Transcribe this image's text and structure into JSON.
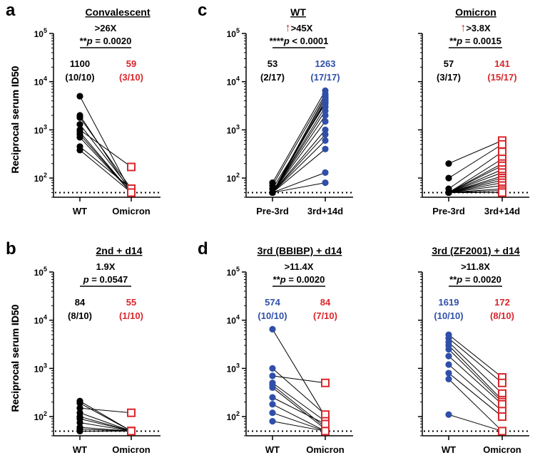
{
  "figure": {
    "background": "#ffffff"
  },
  "colors": {
    "black": "#000000",
    "blue": "#2f4fa8",
    "red": "#d9262b"
  },
  "chart_data": [
    {
      "id": "a",
      "type": "scatter-paired",
      "letter": "a",
      "title": "Convalescent",
      "ylabel": "Reciprocal serum ID50",
      "yscale": "log",
      "ylim": [
        40,
        100000
      ],
      "y_ticks": [
        "10",
        "10",
        "10",
        "10"
      ],
      "y_tick_exps": [
        "2",
        "3",
        "4",
        "5"
      ],
      "categories": [
        "WT",
        "Omicron"
      ],
      "lod": 50,
      "fold": ">26X",
      "p_prefix": "**",
      "p_text": " = 0.0020",
      "geo": [
        [
          "1100",
          "(10/10)"
        ],
        [
          "59",
          "(3/10)"
        ]
      ],
      "geo_colors": [
        "black",
        "red"
      ],
      "marker": [
        [
          "circle",
          "black"
        ],
        [
          "square",
          "red"
        ]
      ],
      "pairs": [
        [
          5000,
          50
        ],
        [
          2000,
          50
        ],
        [
          1800,
          60
        ],
        [
          1300,
          55
        ],
        [
          1000,
          170
        ],
        [
          900,
          50
        ],
        [
          800,
          50
        ],
        [
          700,
          50
        ],
        [
          450,
          60
        ],
        [
          380,
          50
        ]
      ]
    },
    {
      "id": "c1",
      "type": "scatter-paired",
      "letter": "c",
      "title": "WT",
      "ylabel": "Reciprocal serum ID50",
      "yscale": "log",
      "ylim": [
        40,
        100000
      ],
      "y_ticks": [
        "10",
        "10",
        "10",
        "10"
      ],
      "y_tick_exps": [
        "2",
        "3",
        "4",
        "5"
      ],
      "categories": [
        "Pre-3rd",
        "3rd+14d"
      ],
      "lod": 50,
      "arrow": "↑",
      "fold": ">45X",
      "p_prefix": "****",
      "p_text": " < 0.0001",
      "geo": [
        [
          "53",
          "(2/17)"
        ],
        [
          "1263",
          "(17/17)"
        ]
      ],
      "geo_colors": [
        "black",
        "blue"
      ],
      "marker": [
        [
          "circle",
          "black"
        ],
        [
          "circle",
          "blue"
        ]
      ],
      "pairs": [
        [
          80,
          6500
        ],
        [
          70,
          5500
        ],
        [
          50,
          5000
        ],
        [
          50,
          4500
        ],
        [
          50,
          4000
        ],
        [
          50,
          3800
        ],
        [
          60,
          3500
        ],
        [
          50,
          3000
        ],
        [
          50,
          2500
        ],
        [
          50,
          2000
        ],
        [
          50,
          1500
        ],
        [
          50,
          1000
        ],
        [
          50,
          800
        ],
        [
          50,
          600
        ],
        [
          50,
          400
        ],
        [
          50,
          130
        ],
        [
          50,
          80
        ]
      ]
    },
    {
      "id": "c2",
      "type": "scatter-paired",
      "letter": "",
      "title": "Omicron",
      "ylabel": "",
      "yscale": "log",
      "ylim": [
        40,
        100000
      ],
      "y_ticks": [
        "",
        "",
        "",
        ""
      ],
      "y_tick_exps": [
        "",
        "",
        "",
        ""
      ],
      "categories": [
        "Pre-3rd",
        "3rd+14d"
      ],
      "lod": 50,
      "arrow": "↑",
      "fold": ">3.8X",
      "p_prefix": "**",
      "p_text": " = 0.0015",
      "geo": [
        [
          "57",
          "(3/17)"
        ],
        [
          "141",
          "(15/17)"
        ]
      ],
      "geo_colors": [
        "black",
        "red"
      ],
      "marker": [
        [
          "circle",
          "black"
        ],
        [
          "square",
          "red"
        ]
      ],
      "pairs": [
        [
          200,
          600
        ],
        [
          100,
          500
        ],
        [
          60,
          350
        ],
        [
          50,
          250
        ],
        [
          50,
          200
        ],
        [
          50,
          180
        ],
        [
          50,
          150
        ],
        [
          50,
          130
        ],
        [
          50,
          110
        ],
        [
          50,
          100
        ],
        [
          50,
          90
        ],
        [
          50,
          80
        ],
        [
          50,
          70
        ],
        [
          50,
          60
        ],
        [
          50,
          55
        ],
        [
          50,
          50
        ],
        [
          50,
          50
        ]
      ]
    },
    {
      "id": "b",
      "type": "scatter-paired",
      "letter": "b",
      "title": "2nd + d14",
      "ylabel": "Reciprocal serum ID50",
      "yscale": "log",
      "ylim": [
        40,
        100000
      ],
      "y_ticks": [
        "10",
        "10",
        "10",
        "10"
      ],
      "y_tick_exps": [
        "2",
        "3",
        "4",
        "5"
      ],
      "categories": [
        "WT",
        "Omicron"
      ],
      "lod": 50,
      "fold": "1.9X",
      "p_prefix": "",
      "p_text": " = 0.0547",
      "geo": [
        [
          "84",
          "(8/10)"
        ],
        [
          "55",
          "(1/10)"
        ]
      ],
      "geo_colors": [
        "black",
        "red"
      ],
      "marker": [
        [
          "circle",
          "black"
        ],
        [
          "square",
          "red"
        ]
      ],
      "pairs": [
        [
          210,
          50
        ],
        [
          190,
          50
        ],
        [
          150,
          120
        ],
        [
          120,
          50
        ],
        [
          100,
          50
        ],
        [
          90,
          50
        ],
        [
          75,
          50
        ],
        [
          60,
          50
        ],
        [
          55,
          50
        ],
        [
          50,
          50
        ]
      ]
    },
    {
      "id": "d1",
      "type": "scatter-paired",
      "letter": "d",
      "title": "3rd (BBIBP) + d14",
      "ylabel": "Reciprocal serum ID50",
      "yscale": "log",
      "ylim": [
        40,
        100000
      ],
      "y_ticks": [
        "10",
        "10",
        "10",
        "10"
      ],
      "y_tick_exps": [
        "2",
        "3",
        "4",
        "5"
      ],
      "categories": [
        "WT",
        "Omicron"
      ],
      "lod": 50,
      "fold": ">11.4X",
      "p_prefix": "**",
      "p_text": " = 0.0020",
      "geo": [
        [
          "574",
          "(10/10)"
        ],
        [
          "84",
          "(7/10)"
        ]
      ],
      "geo_colors": [
        "blue",
        "red"
      ],
      "marker": [
        [
          "circle",
          "blue"
        ],
        [
          "square",
          "red"
        ]
      ],
      "pairs": [
        [
          6500,
          100
        ],
        [
          1000,
          110
        ],
        [
          700,
          500
        ],
        [
          500,
          80
        ],
        [
          450,
          60
        ],
        [
          400,
          55
        ],
        [
          250,
          70
        ],
        [
          180,
          50
        ],
        [
          120,
          50
        ],
        [
          80,
          50
        ]
      ]
    },
    {
      "id": "d2",
      "type": "scatter-paired",
      "letter": "",
      "title": "3rd (ZF2001) + d14",
      "ylabel": "",
      "yscale": "log",
      "ylim": [
        40,
        100000
      ],
      "y_ticks": [
        "",
        "",
        "",
        ""
      ],
      "y_tick_exps": [
        "",
        "",
        "",
        ""
      ],
      "categories": [
        "WT",
        "Omicron"
      ],
      "lod": 50,
      "fold": ">11.8X",
      "p_prefix": "**",
      "p_text": " = 0.0020",
      "geo": [
        [
          "1619",
          "(10/10)"
        ],
        [
          "172",
          "(8/10)"
        ]
      ],
      "geo_colors": [
        "blue",
        "red"
      ],
      "marker": [
        [
          "circle",
          "blue"
        ],
        [
          "square",
          "red"
        ]
      ],
      "pairs": [
        [
          5000,
          650
        ],
        [
          4200,
          500
        ],
        [
          3500,
          300
        ],
        [
          3000,
          220
        ],
        [
          2500,
          200
        ],
        [
          1800,
          180
        ],
        [
          1200,
          130
        ],
        [
          800,
          100
        ],
        [
          600,
          50
        ],
        [
          110,
          50
        ]
      ]
    }
  ]
}
